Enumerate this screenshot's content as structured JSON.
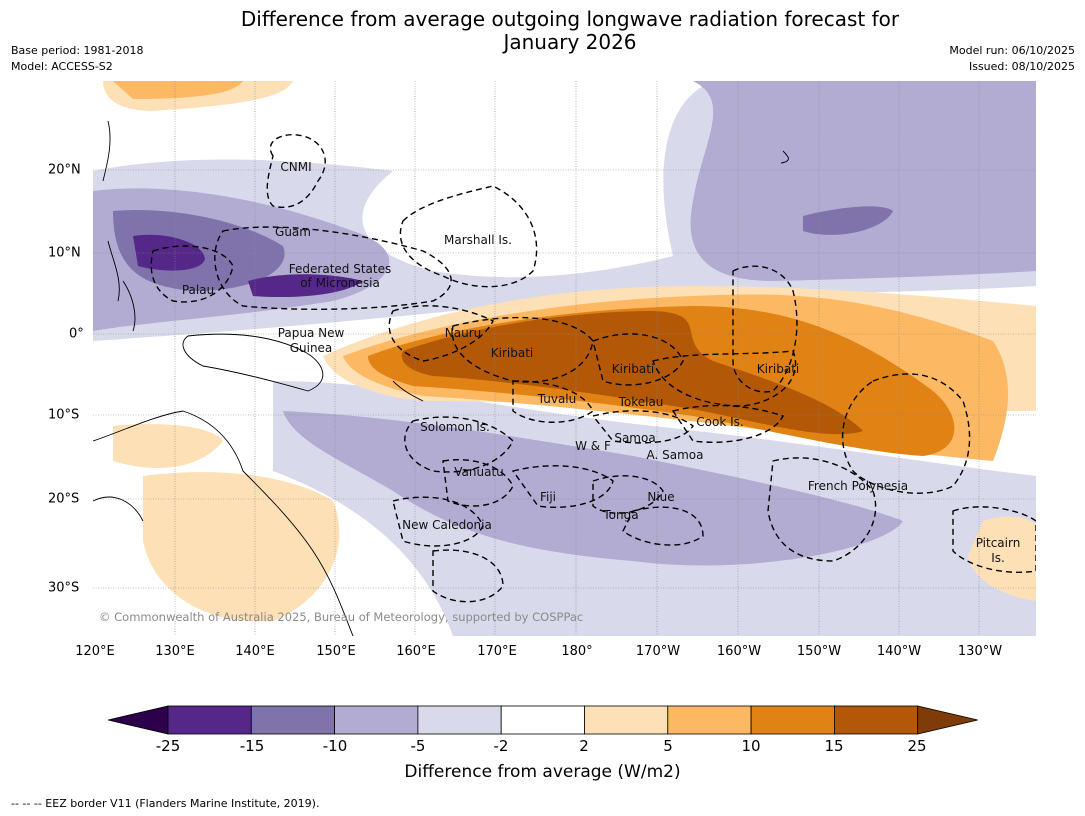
{
  "title_line1": "Difference from average outgoing longwave radiation forecast for",
  "title_line2": "January 2026",
  "meta_left": {
    "base_period": "Base period: 1981-2018",
    "model": "Model: ACCESS-S2"
  },
  "meta_right": {
    "model_run": "Model run: 06/10/2025",
    "issued": "Issued: 08/10/2025"
  },
  "map": {
    "lon_ticks": [
      "120°E",
      "130°E",
      "140°E",
      "150°E",
      "160°E",
      "170°E",
      "180°",
      "170°W",
      "160°W",
      "150°W",
      "140°W",
      "130°W"
    ],
    "lat_ticks": [
      "20°N",
      "10°N",
      "0°",
      "10°S",
      "20°S",
      "30°S"
    ],
    "places": {
      "cnmi": "CNMI",
      "guam": "Guam",
      "marshall": "Marshall Is.",
      "fsm1": "Federated States",
      "fsm2": "of Micronesia",
      "palau": "Palau",
      "png1": "Papua New",
      "png2": "Guinea",
      "nauru": "Nauru",
      "kiribati1": "Kiribati",
      "kiribati2": "Kiribati",
      "kiribati3": "Kiribati",
      "tuvalu": "Tuvalu",
      "tokelau": "Tokelau",
      "cook": "Cook Is.",
      "solomon": "Solomon Is.",
      "wf": "W & F",
      "samoa": "Samoa",
      "asamoa": "A. Samoa",
      "vanuatu": "Vanuatu",
      "fiji": "Fiji",
      "niue": "Niue",
      "tonga": "Tonga",
      "frenchpoly": "French Polynesia",
      "newcal": "New Caledonia",
      "pitcairn1": "Pitcairn",
      "pitcairn2": "Is."
    },
    "copyright": "© Commonwealth of Australia 2025, Bureau of Meteorology, supported by COSPPac"
  },
  "colorbar": {
    "labels": [
      "-25",
      "-15",
      "-10",
      "-5",
      "-2",
      "2",
      "5",
      "10",
      "15",
      "25"
    ],
    "colors": [
      "#2d004b",
      "#542788",
      "#8073ac",
      "#b2abd2",
      "#d8daeb",
      "#ffffff",
      "#fee0b6",
      "#fdb863",
      "#e08214",
      "#b35806",
      "#7f3b08"
    ],
    "title": "Difference from average (W/m2)"
  },
  "footnote": "--  --  -- EEZ border V11 (Flanders Marine Institute, 2019)."
}
